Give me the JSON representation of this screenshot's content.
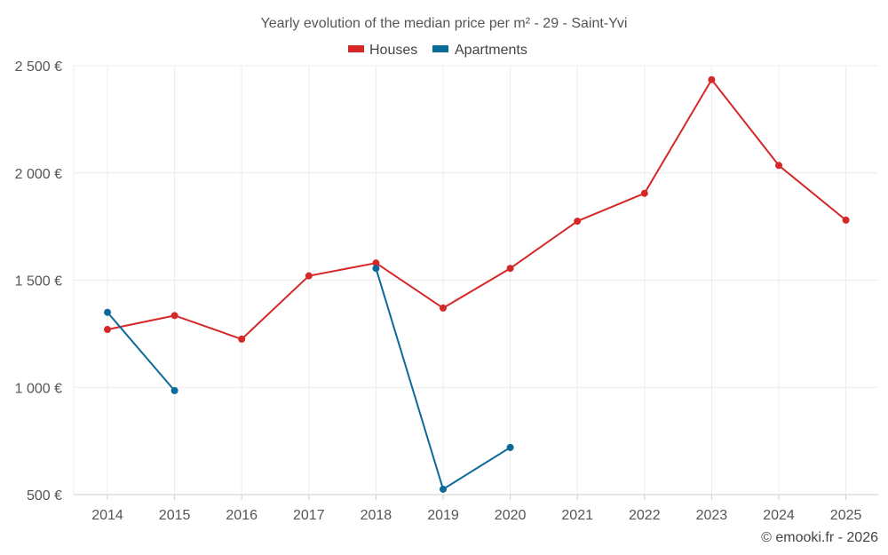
{
  "chart_data": {
    "type": "line",
    "title": "Yearly evolution of the median price per m² - 29 - Saint-Yvi",
    "categories": [
      "2014",
      "2015",
      "2016",
      "2017",
      "2018",
      "2019",
      "2020",
      "2021",
      "2022",
      "2023",
      "2024",
      "2025"
    ],
    "ylim": [
      500,
      2500
    ],
    "yticks": [
      500,
      1000,
      1500,
      2000,
      2500
    ],
    "ytick_labels": [
      "500 €",
      "1 000 €",
      "1 500 €",
      "2 000 €",
      "2 500 €"
    ],
    "xlabel": "",
    "ylabel": "",
    "grid": true,
    "legend_position": "top-center",
    "series": [
      {
        "name": "Houses",
        "color": "#d62728",
        "values": [
          1270,
          1335,
          1225,
          1520,
          1580,
          1370,
          1555,
          1775,
          1905,
          2435,
          2035,
          1780
        ]
      },
      {
        "name": "Apartments",
        "color": "#0b6a9a",
        "values": [
          1350,
          985,
          null,
          null,
          1555,
          525,
          720,
          null,
          null,
          null,
          null,
          null
        ]
      }
    ]
  },
  "credit": "© emooki.fr - 2026"
}
